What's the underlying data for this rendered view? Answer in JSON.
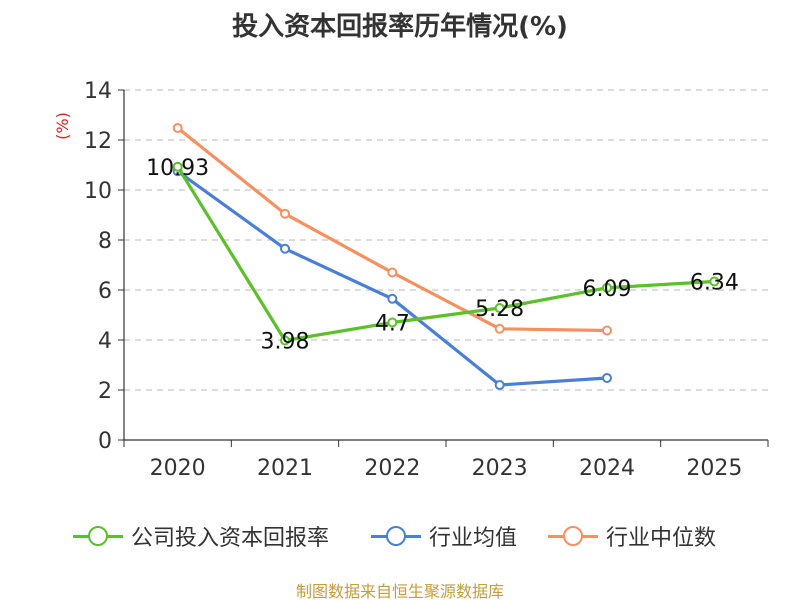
{
  "chart_data": {
    "type": "line",
    "title": "投入资本回报率历年情况(%)",
    "ylabel": "(%)",
    "xlabel": "",
    "categories": [
      "2020",
      "2021",
      "2022",
      "2023",
      "2024",
      "2025"
    ],
    "ylim": [
      0,
      14
    ],
    "yticks": [
      0,
      2,
      4,
      6,
      8,
      10,
      12,
      14
    ],
    "grid": "horizontal-dashed",
    "legend_position": "bottom",
    "series": [
      {
        "name": "公司投入资本回报率",
        "color": "#5cc02a",
        "values": [
          10.93,
          3.98,
          4.7,
          5.28,
          6.09,
          6.34
        ],
        "labels": [
          "10.93",
          "3.98",
          "4.7",
          "5.28",
          "6.09",
          "6.34"
        ]
      },
      {
        "name": "行业均值",
        "color": "#4a7fd8",
        "values": [
          10.75,
          7.65,
          5.65,
          2.2,
          2.48,
          null
        ]
      },
      {
        "name": "行业中位数",
        "color": "#f79060",
        "values": [
          12.48,
          9.05,
          6.7,
          4.45,
          4.38,
          null
        ]
      }
    ]
  },
  "source": "制图数据来自恒生聚源数据库"
}
